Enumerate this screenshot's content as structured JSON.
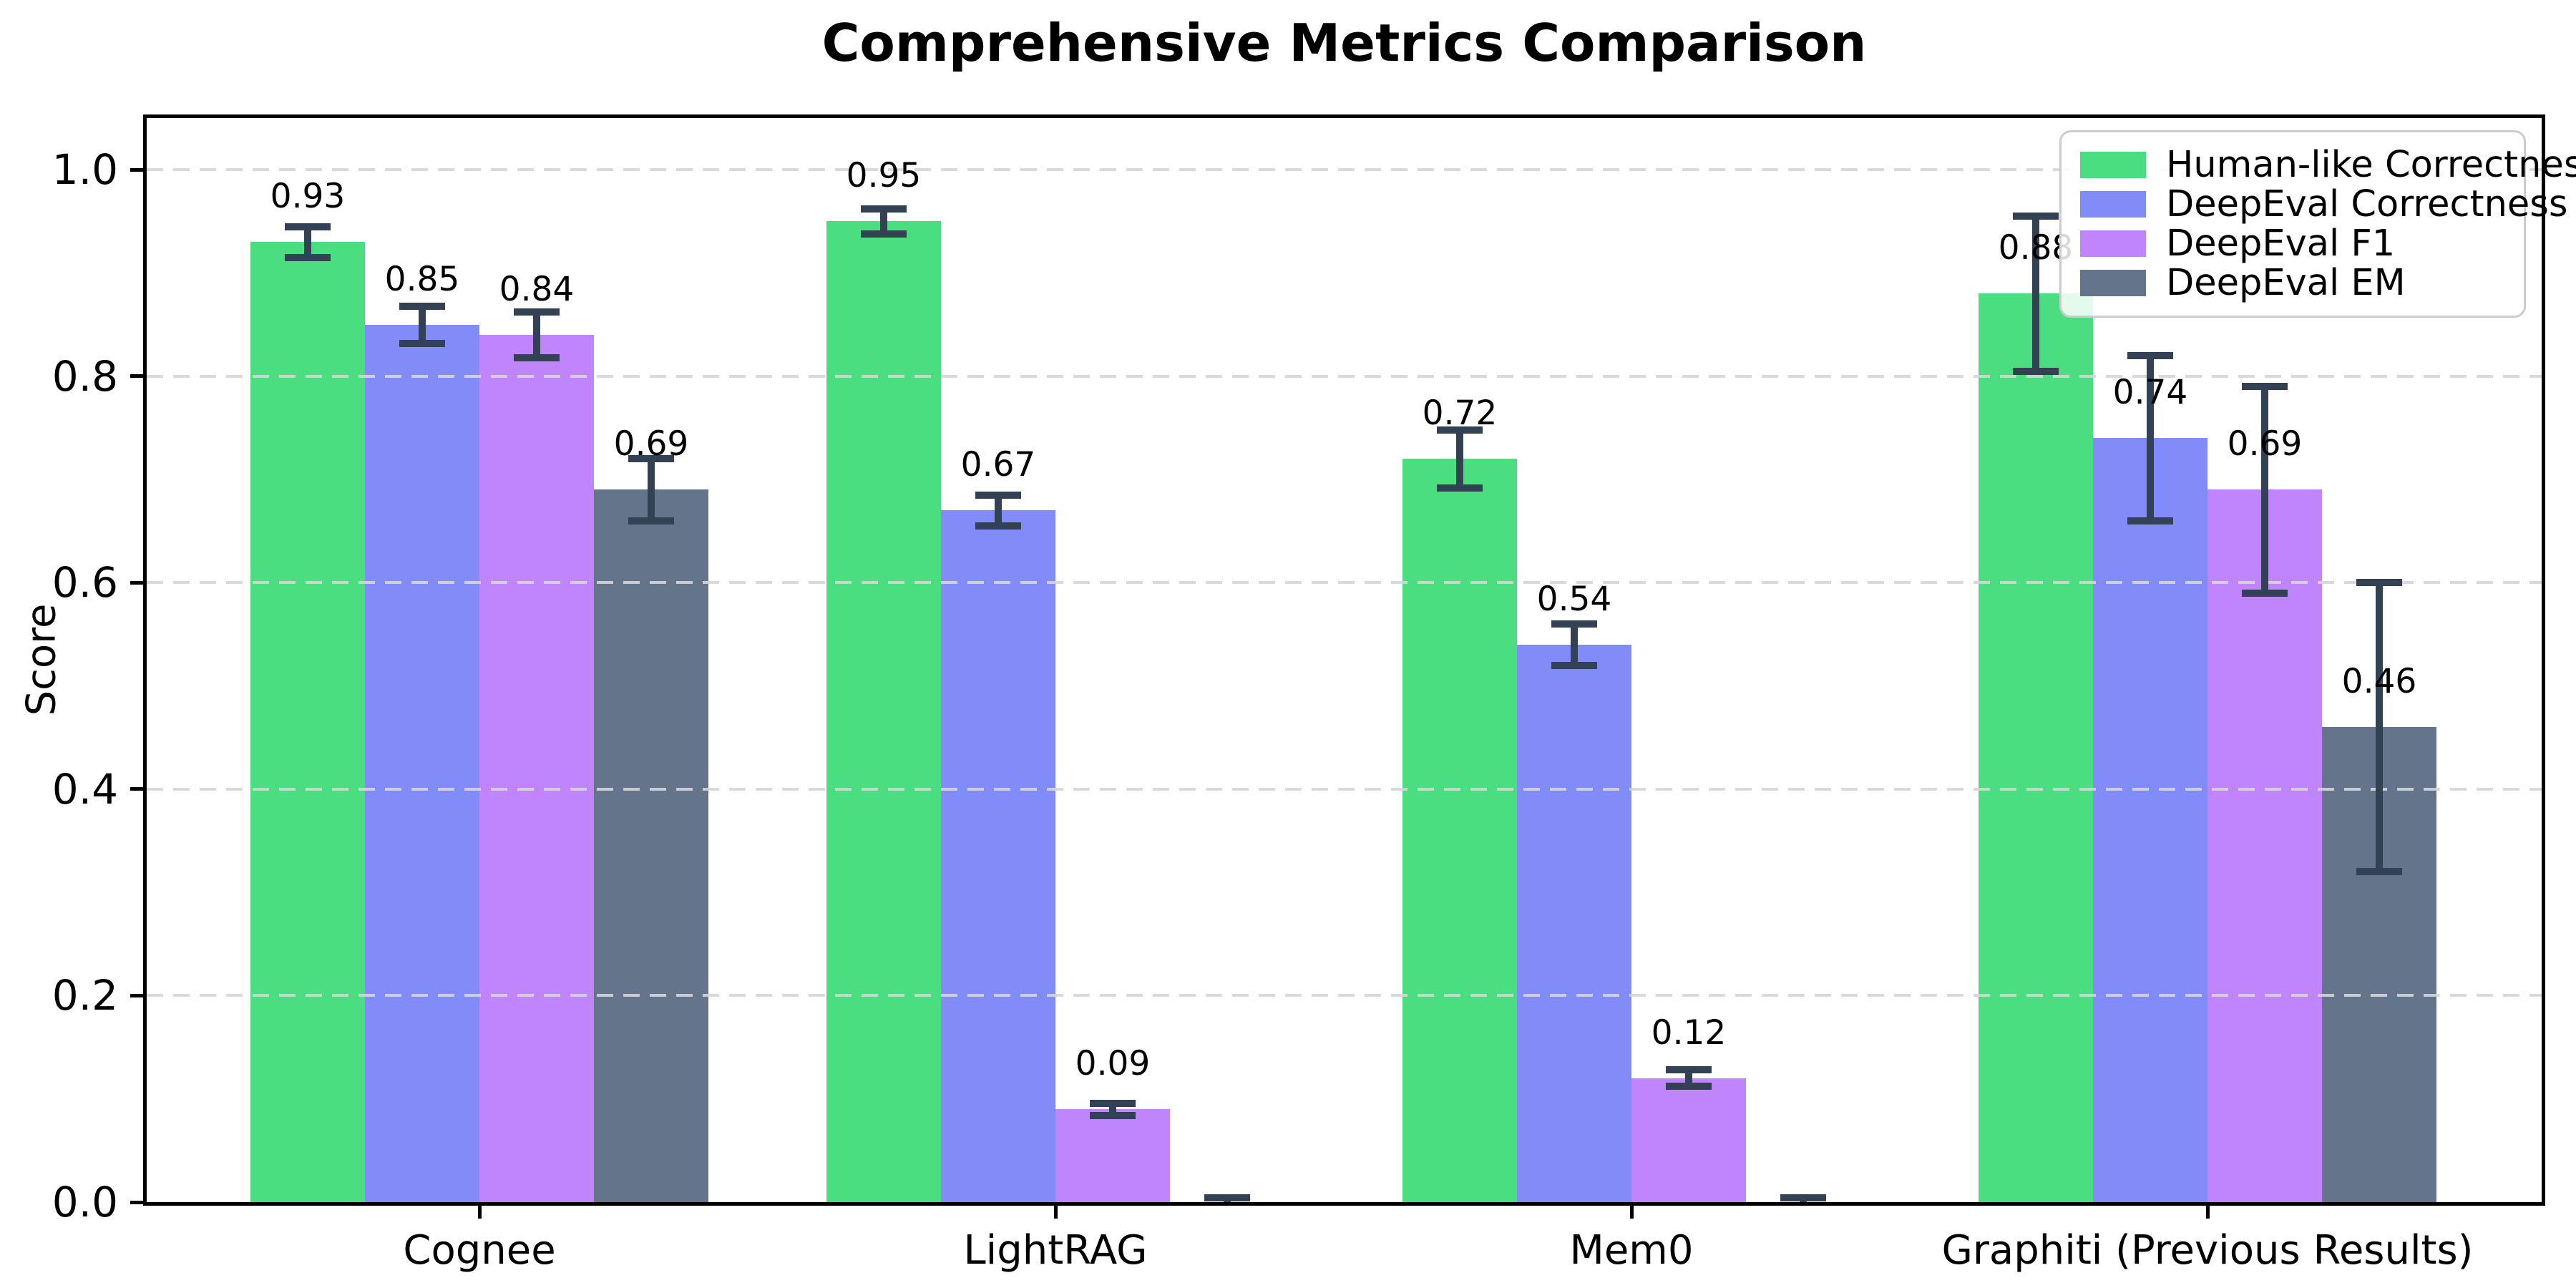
{
  "chart_data": {
    "type": "bar",
    "title": "Comprehensive Metrics Comparison",
    "ylabel": "Score",
    "xlabel": "",
    "categories": [
      "Cognee",
      "LightRAG",
      "Mem0",
      "Graphiti (Previous Results)"
    ],
    "series": [
      {
        "name": "Human-like Correctness",
        "color": "#4ade80",
        "values": [
          0.93,
          0.95,
          0.72,
          0.88
        ],
        "errors": [
          0.015,
          0.012,
          0.028,
          0.075
        ],
        "bar_labels": [
          "0.93",
          "0.95",
          "0.72",
          "0.88"
        ]
      },
      {
        "name": "DeepEval Correctness",
        "color": "#818cf8",
        "values": [
          0.85,
          0.67,
          0.54,
          0.74
        ],
        "errors": [
          0.018,
          0.015,
          0.02,
          0.08
        ],
        "bar_labels": [
          "0.85",
          "0.67",
          "0.54",
          "0.74"
        ]
      },
      {
        "name": "DeepEval F1",
        "color": "#c084fc",
        "values": [
          0.84,
          0.09,
          0.12,
          0.69
        ],
        "errors": [
          0.022,
          0.006,
          0.008,
          0.1
        ],
        "bar_labels": [
          "0.84",
          "0.09",
          "0.12",
          "0.69"
        ]
      },
      {
        "name": "DeepEval EM",
        "color": "#64748b",
        "values": [
          0.69,
          0.0,
          0.0,
          0.46
        ],
        "errors": [
          0.03,
          0.004,
          0.004,
          0.14
        ],
        "bar_labels": [
          "0.69",
          "",
          "",
          "0.46"
        ]
      }
    ],
    "yticks": [
      0.0,
      0.2,
      0.4,
      0.6,
      0.8,
      1.0
    ],
    "ytick_labels": [
      "0.0",
      "0.2",
      "0.4",
      "0.6",
      "0.8",
      "1.0"
    ],
    "ylim": [
      0,
      1.05
    ],
    "grid": "horizontal-dashed",
    "gridline_color": "#d6d6d6",
    "legend_position": "upper-right",
    "error_bar_color": "#334155",
    "spine_color": "#000000",
    "background_color": "#ffffff"
  }
}
